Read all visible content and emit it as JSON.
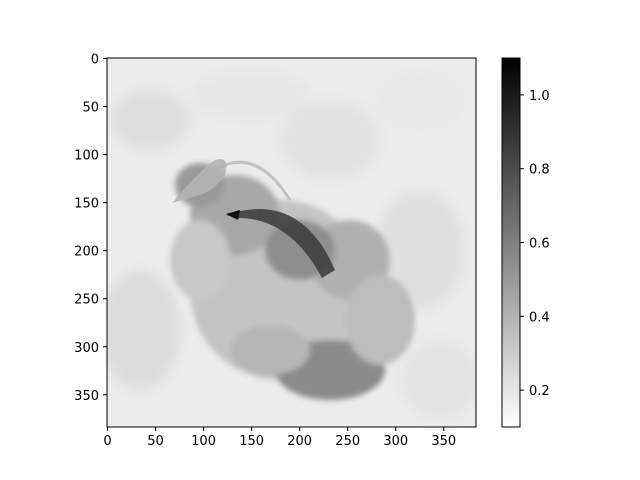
{
  "chart_data": {
    "type": "heatmap",
    "title": "",
    "xlabel": "",
    "ylabel": "",
    "image_width": 384,
    "image_height": 384,
    "colormap": "gray_r",
    "x_ticks": [
      0,
      50,
      100,
      150,
      200,
      250,
      300,
      350
    ],
    "y_ticks": [
      0,
      50,
      100,
      150,
      200,
      250,
      300,
      350
    ],
    "xlim": [
      -0.5,
      383.5
    ],
    "ylim": [
      383.5,
      -0.5
    ],
    "colorbar": {
      "min": 0.1,
      "max": 1.1,
      "ticks": [
        0.2,
        0.4,
        0.6,
        0.8,
        1.0
      ],
      "tick_labels": [
        "0.2",
        "0.4",
        "0.6",
        "0.8",
        "1.0"
      ]
    },
    "regions": [
      {
        "feature": "background",
        "value": 0.2
      },
      {
        "feature": "arch-dark-band",
        "value": 0.85
      },
      {
        "feature": "left-head-shape",
        "value": 0.65
      },
      {
        "feature": "body-mass",
        "value": 0.55
      },
      {
        "feature": "lower-dark-patch",
        "value": 0.7
      },
      {
        "feature": "right-mid-patch",
        "value": 0.55
      }
    ]
  },
  "colors": {
    "low": "#ffffff",
    "high": "#000000",
    "axis": "#000000"
  }
}
